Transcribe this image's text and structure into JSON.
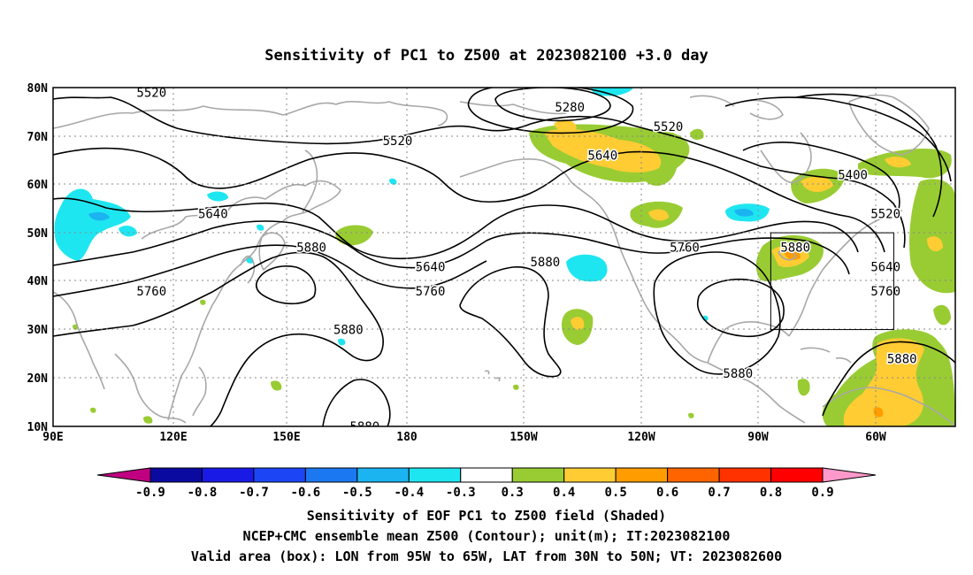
{
  "title": "Sensitivity of PC1 to Z500 at 2023082100 +3.0 day",
  "lat_labels": [
    "80N",
    "70N",
    "60N",
    "50N",
    "40N",
    "30N",
    "20N",
    "10N"
  ],
  "lon_labels": [
    "90E",
    "120E",
    "150E",
    "180",
    "150W",
    "120W",
    "90W",
    "60W"
  ],
  "colorbar": {
    "labels": [
      "-0.9",
      "-0.8",
      "-0.7",
      "-0.6",
      "-0.5",
      "-0.4",
      "-0.3",
      "0.3",
      "0.4",
      "0.5",
      "0.6",
      "0.7",
      "0.8",
      "0.9"
    ],
    "colors": [
      "#0a0aa0",
      "#1a1ae6",
      "#1c46f5",
      "#1c78f0",
      "#1cb4f0",
      "#1ee6f0",
      "#ffffff",
      "#99cc33",
      "#ffcc33",
      "#ff9d00",
      "#ff6400",
      "#ff3200",
      "#ff0000"
    ],
    "under_color": "#c00080",
    "over_color": "#ff99cc"
  },
  "caption": [
    "Sensitivity of EOF PC1 to Z500 field (Shaded)",
    "NCEP+CMC ensemble mean Z500 (Contour); unit(m); IT:2023082100",
    "Valid area (box): LON from 95W to 65W, LAT from 30N to 50N; VT: 2023082600"
  ],
  "contour_labels": [
    {
      "text": "5520",
      "lon": 114,
      "lat": 79
    },
    {
      "text": "5280",
      "lon": -144,
      "lat": 76
    },
    {
      "text": "5520",
      "lon": -120,
      "lat": 72
    },
    {
      "text": "5520",
      "lon": 174,
      "lat": 69
    },
    {
      "text": "5640",
      "lon": -136,
      "lat": 66
    },
    {
      "text": "5400",
      "lon": -75,
      "lat": 62
    },
    {
      "text": "5640",
      "lon": 129,
      "lat": 54
    },
    {
      "text": "5520",
      "lon": -67,
      "lat": 54
    },
    {
      "text": "5880",
      "lon": 153,
      "lat": 47
    },
    {
      "text": "5760",
      "lon": -116,
      "lat": 47
    },
    {
      "text": "5880",
      "lon": -89,
      "lat": 47
    },
    {
      "text": "5640",
      "lon": -178,
      "lat": 43
    },
    {
      "text": "5880",
      "lon": -150,
      "lat": 44
    },
    {
      "text": "5640",
      "lon": -67,
      "lat": 43
    },
    {
      "text": "5760",
      "lon": 114,
      "lat": 38
    },
    {
      "text": "5760",
      "lon": -178,
      "lat": 38
    },
    {
      "text": "5760",
      "lon": -67,
      "lat": 38
    },
    {
      "text": "5880",
      "lon": 162,
      "lat": 30
    },
    {
      "text": "5880",
      "lon": -103,
      "lat": 21
    },
    {
      "text": "5880",
      "lon": -63,
      "lat": 24
    },
    {
      "text": "5880",
      "lon": 166,
      "lat": 10
    }
  ],
  "valid_box": {
    "lon_west": -95,
    "lon_east": -65,
    "lat_south": 30,
    "lat_north": 50
  }
}
